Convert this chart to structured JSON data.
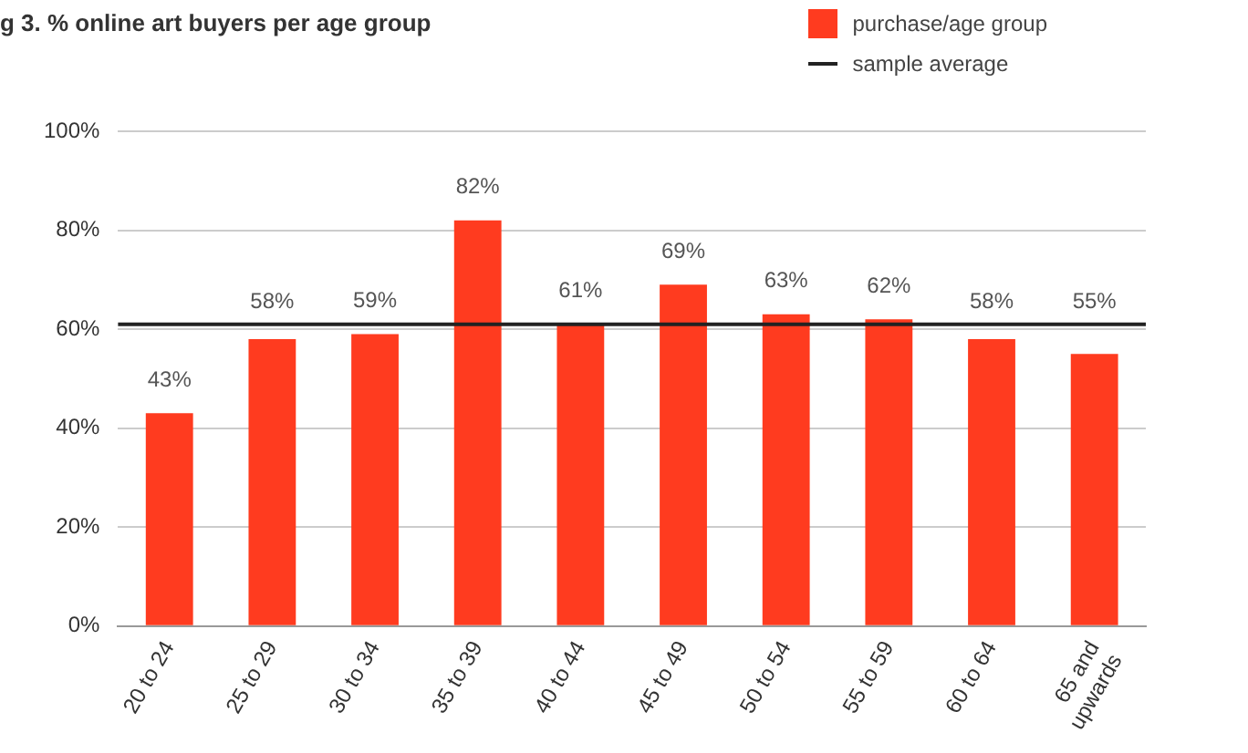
{
  "chart_data": {
    "type": "bar",
    "title": "g 3. % online art buyers per age group",
    "categories": [
      "20 to 24",
      "25 to 29",
      "30 to 34",
      "35 to 39",
      "40 to 44",
      "45 to 49",
      "50 to 54",
      "55 to 59",
      "60 to 64",
      "65 and upwards"
    ],
    "series": [
      {
        "name": "purchase/age group",
        "color": "#ff3b1f",
        "values": [
          43,
          58,
          59,
          82,
          61,
          69,
          63,
          62,
          58,
          55
        ]
      }
    ],
    "value_labels": [
      "43%",
      "58%",
      "59%",
      "82%",
      "61%",
      "69%",
      "63%",
      "62%",
      "58%",
      "55%"
    ],
    "ref_lines": [
      {
        "axis": "y",
        "value": 61,
        "label": "sample average",
        "color": "#222222"
      }
    ],
    "ylim": [
      0,
      100
    ],
    "yticks": [
      {
        "value": 0,
        "label": "0%"
      },
      {
        "value": 20,
        "label": "20%"
      },
      {
        "value": 40,
        "label": "40%"
      },
      {
        "value": 60,
        "label": "60%"
      },
      {
        "value": 80,
        "label": "80%"
      },
      {
        "value": 100,
        "label": "100%"
      }
    ],
    "grid": "y",
    "legend": "top right"
  }
}
